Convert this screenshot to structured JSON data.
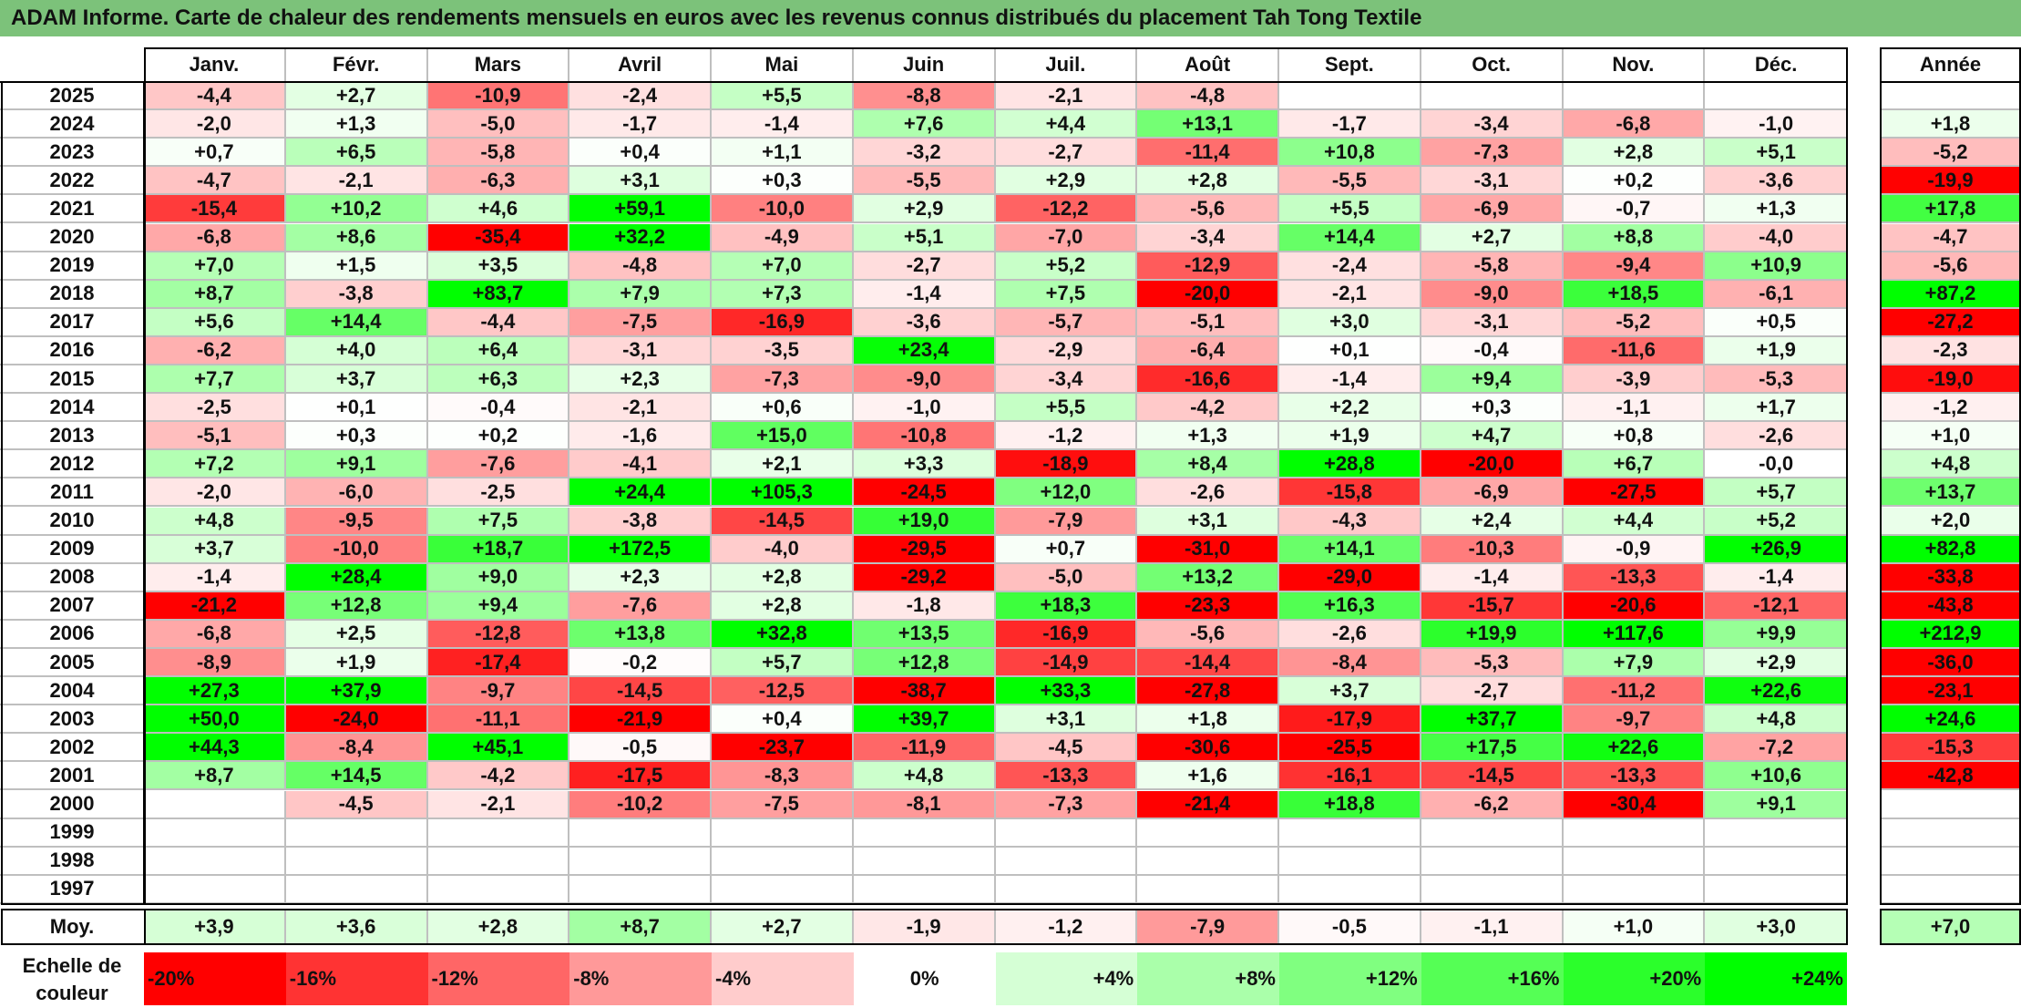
{
  "title": "ADAM Informe. Carte de chaleur des rendements mensuels en euros avec les revenus connus distribués du placement Tah Tong Textile",
  "chart_data": {
    "type": "heatmap",
    "title": "ADAM Informe. Carte de chaleur des rendements mensuels en euros avec les revenus connus distribués du placement Tah Tong Textile",
    "months": [
      "Janv.",
      "Févr.",
      "Mars",
      "Avril",
      "Mai",
      "Juin",
      "Juil.",
      "Août",
      "Sept.",
      "Oct.",
      "Nov.",
      "Déc."
    ],
    "year_header": "Année",
    "rows": [
      {
        "year": "2025",
        "values": [
          "-4,4",
          "+2,7",
          "-10,9",
          "-2,4",
          "+5,5",
          "-8,8",
          "-2,1",
          "-4,8",
          "",
          "",
          "",
          ""
        ],
        "annual": ""
      },
      {
        "year": "2024",
        "values": [
          "-2,0",
          "+1,3",
          "-5,0",
          "-1,7",
          "-1,4",
          "+7,6",
          "+4,4",
          "+13,1",
          "-1,7",
          "-3,4",
          "-6,8",
          "-1,0"
        ],
        "annual": "+1,8"
      },
      {
        "year": "2023",
        "values": [
          "+0,7",
          "+6,5",
          "-5,8",
          "+0,4",
          "+1,1",
          "-3,2",
          "-2,7",
          "-11,4",
          "+10,8",
          "-7,3",
          "+2,8",
          "+5,1"
        ],
        "annual": "-5,2"
      },
      {
        "year": "2022",
        "values": [
          "-4,7",
          "-2,1",
          "-6,3",
          "+3,1",
          "+0,3",
          "-5,5",
          "+2,9",
          "+2,8",
          "-5,5",
          "-3,1",
          "+0,2",
          "-3,6"
        ],
        "annual": "-19,9"
      },
      {
        "year": "2021",
        "values": [
          "-15,4",
          "+10,2",
          "+4,6",
          "+59,1",
          "-10,0",
          "+2,9",
          "-12,2",
          "-5,6",
          "+5,5",
          "-6,9",
          "-0,7",
          "+1,3"
        ],
        "annual": "+17,8"
      },
      {
        "year": "2020",
        "values": [
          "-6,8",
          "+8,6",
          "-35,4",
          "+32,2",
          "-4,9",
          "+5,1",
          "-7,0",
          "-3,4",
          "+14,4",
          "+2,7",
          "+8,8",
          "-4,0"
        ],
        "annual": "-4,7"
      },
      {
        "year": "2019",
        "values": [
          "+7,0",
          "+1,5",
          "+3,5",
          "-4,8",
          "+7,0",
          "-2,7",
          "+5,2",
          "-12,9",
          "-2,4",
          "-5,8",
          "-9,4",
          "+10,9"
        ],
        "annual": "-5,6"
      },
      {
        "year": "2018",
        "values": [
          "+8,7",
          "-3,8",
          "+83,7",
          "+7,9",
          "+7,3",
          "-1,4",
          "+7,5",
          "-20,0",
          "-2,1",
          "-9,0",
          "+18,5",
          "-6,1"
        ],
        "annual": "+87,2"
      },
      {
        "year": "2017",
        "values": [
          "+5,6",
          "+14,4",
          "-4,4",
          "-7,5",
          "-16,9",
          "-3,6",
          "-5,7",
          "-5,1",
          "+3,0",
          "-3,1",
          "-5,2",
          "+0,5"
        ],
        "annual": "-27,2"
      },
      {
        "year": "2016",
        "values": [
          "-6,2",
          "+4,0",
          "+6,4",
          "-3,1",
          "-3,5",
          "+23,4",
          "-2,9",
          "-6,4",
          "+0,1",
          "-0,4",
          "-11,6",
          "+1,9"
        ],
        "annual": "-2,3"
      },
      {
        "year": "2015",
        "values": [
          "+7,7",
          "+3,7",
          "+6,3",
          "+2,3",
          "-7,3",
          "-9,0",
          "-3,4",
          "-16,6",
          "-1,4",
          "+9,4",
          "-3,9",
          "-5,3"
        ],
        "annual": "-19,0"
      },
      {
        "year": "2014",
        "values": [
          "-2,5",
          "+0,1",
          "-0,4",
          "-2,1",
          "+0,6",
          "-1,0",
          "+5,5",
          "-4,2",
          "+2,2",
          "+0,3",
          "-1,1",
          "+1,7"
        ],
        "annual": "-1,2"
      },
      {
        "year": "2013",
        "values": [
          "-5,1",
          "+0,3",
          "+0,2",
          "-1,6",
          "+15,0",
          "-10,8",
          "-1,2",
          "+1,3",
          "+1,9",
          "+4,7",
          "+0,8",
          "-2,6"
        ],
        "annual": "+1,0"
      },
      {
        "year": "2012",
        "values": [
          "+7,2",
          "+9,1",
          "-7,6",
          "-4,1",
          "+2,1",
          "+3,3",
          "-18,9",
          "+8,4",
          "+28,8",
          "-20,0",
          "+6,7",
          "-0,0"
        ],
        "annual": "+4,8"
      },
      {
        "year": "2011",
        "values": [
          "-2,0",
          "-6,0",
          "-2,5",
          "+24,4",
          "+105,3",
          "-24,5",
          "+12,0",
          "-2,6",
          "-15,8",
          "-6,9",
          "-27,5",
          "+5,7"
        ],
        "annual": "+13,7"
      },
      {
        "year": "2010",
        "values": [
          "+4,8",
          "-9,5",
          "+7,5",
          "-3,8",
          "-14,5",
          "+19,0",
          "-7,9",
          "+3,1",
          "-4,3",
          "+2,4",
          "+4,4",
          "+5,2"
        ],
        "annual": "+2,0"
      },
      {
        "year": "2009",
        "values": [
          "+3,7",
          "-10,0",
          "+18,7",
          "+172,5",
          "-4,0",
          "-29,5",
          "+0,7",
          "-31,0",
          "+14,1",
          "-10,3",
          "-0,9",
          "+26,9"
        ],
        "annual": "+82,8"
      },
      {
        "year": "2008",
        "values": [
          "-1,4",
          "+28,4",
          "+9,0",
          "+2,3",
          "+2,8",
          "-29,2",
          "-5,0",
          "+13,2",
          "-29,0",
          "-1,4",
          "-13,3",
          "-1,4"
        ],
        "annual": "-33,8"
      },
      {
        "year": "2007",
        "values": [
          "-21,2",
          "+12,8",
          "+9,4",
          "-7,6",
          "+2,8",
          "-1,8",
          "+18,3",
          "-23,3",
          "+16,3",
          "-15,7",
          "-20,6",
          "-12,1"
        ],
        "annual": "-43,8"
      },
      {
        "year": "2006",
        "values": [
          "-6,8",
          "+2,5",
          "-12,8",
          "+13,8",
          "+32,8",
          "+13,5",
          "-16,9",
          "-5,6",
          "-2,6",
          "+19,9",
          "+117,6",
          "+9,9"
        ],
        "annual": "+212,9"
      },
      {
        "year": "2005",
        "values": [
          "-8,9",
          "+1,9",
          "-17,4",
          "-0,2",
          "+5,7",
          "+12,8",
          "-14,9",
          "-14,4",
          "-8,4",
          "-5,3",
          "+7,9",
          "+2,9"
        ],
        "annual": "-36,0"
      },
      {
        "year": "2004",
        "values": [
          "+27,3",
          "+37,9",
          "-9,7",
          "-14,5",
          "-12,5",
          "-38,7",
          "+33,3",
          "-27,8",
          "+3,7",
          "-2,7",
          "-11,2",
          "+22,6"
        ],
        "annual": "-23,1"
      },
      {
        "year": "2003",
        "values": [
          "+50,0",
          "-24,0",
          "-11,1",
          "-21,9",
          "+0,4",
          "+39,7",
          "+3,1",
          "+1,8",
          "-17,9",
          "+37,7",
          "-9,7",
          "+4,8"
        ],
        "annual": "+24,6"
      },
      {
        "year": "2002",
        "values": [
          "+44,3",
          "-8,4",
          "+45,1",
          "-0,5",
          "-23,7",
          "-11,9",
          "-4,5",
          "-30,6",
          "-25,5",
          "+17,5",
          "+22,6",
          "-7,2"
        ],
        "annual": "-15,3"
      },
      {
        "year": "2001",
        "values": [
          "+8,7",
          "+14,5",
          "-4,2",
          "-17,5",
          "-8,3",
          "+4,8",
          "-13,3",
          "+1,6",
          "-16,1",
          "-14,5",
          "-13,3",
          "+10,6"
        ],
        "annual": "-42,8"
      },
      {
        "year": "2000",
        "values": [
          "",
          "-4,5",
          "-2,1",
          "-10,2",
          "-7,5",
          "-8,1",
          "-7,3",
          "-21,4",
          "+18,8",
          "-6,2",
          "-30,4",
          "+9,1"
        ],
        "annual": ""
      },
      {
        "year": "1999",
        "values": [
          "",
          "",
          "",
          "",
          "",
          "",
          "",
          "",
          "",
          "",
          "",
          ""
        ],
        "annual": ""
      },
      {
        "year": "1998",
        "values": [
          "",
          "",
          "",
          "",
          "",
          "",
          "",
          "",
          "",
          "",
          "",
          ""
        ],
        "annual": ""
      },
      {
        "year": "1997",
        "values": [
          "",
          "",
          "",
          "",
          "",
          "",
          "",
          "",
          "",
          "",
          "",
          ""
        ],
        "annual": ""
      }
    ],
    "average": {
      "label": "Moy.",
      "values": [
        "+3,9",
        "+3,6",
        "+2,8",
        "+8,7",
        "+2,7",
        "-1,9",
        "-1,2",
        "-7,9",
        "-0,5",
        "-1,1",
        "+1,0",
        "+3,0"
      ],
      "annual": "+7,0"
    },
    "scale": {
      "label": "Echelle de couleur",
      "steps": [
        {
          "label": "-20%",
          "value": -20,
          "color": "#ff0000"
        },
        {
          "label": "-16%",
          "value": -16,
          "color": "#ff3333"
        },
        {
          "label": "-12%",
          "value": -12,
          "color": "#ff6666"
        },
        {
          "label": "-8%",
          "value": -8,
          "color": "#ff9999"
        },
        {
          "label": "-4%",
          "value": -4,
          "color": "#ffcccc"
        },
        {
          "label": "0%",
          "value": 0,
          "color": "#ffffff"
        },
        {
          "label": "+4%",
          "value": 4,
          "color": "#d5ffd5"
        },
        {
          "label": "+8%",
          "value": 8,
          "color": "#aaffaa"
        },
        {
          "label": "+12%",
          "value": 12,
          "color": "#80ff80"
        },
        {
          "label": "+16%",
          "value": 16,
          "color": "#55ff55"
        },
        {
          "label": "+20%",
          "value": 20,
          "color": "#2bff2b"
        },
        {
          "label": "+24%",
          "value": 24,
          "color": "#00ff00"
        }
      ]
    }
  }
}
